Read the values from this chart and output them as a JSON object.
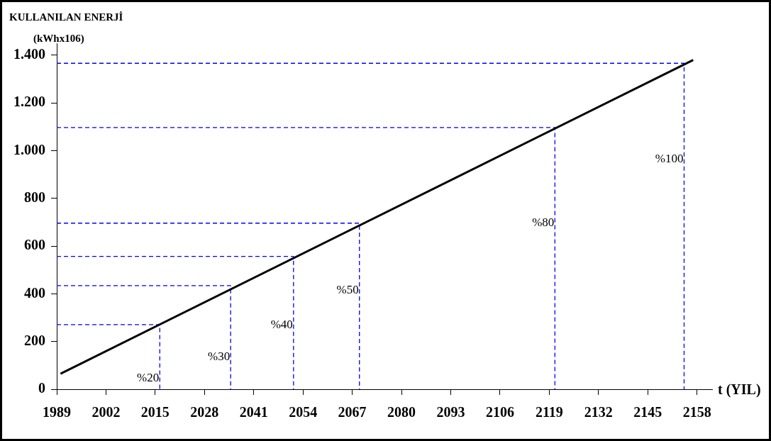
{
  "chart_data": {
    "type": "line",
    "title": "KULLANILAN ENERJİ",
    "ylabel": "(kWhx106)",
    "xlabel": "t (YIL)",
    "xlim": [
      1989,
      2162
    ],
    "xticks": [
      1989,
      2002,
      2015,
      2028,
      2041,
      2054,
      2067,
      2080,
      2093,
      2106,
      2119,
      2132,
      2145,
      2158
    ],
    "ylim": [
      0,
      1450
    ],
    "yticks": [
      0,
      200,
      400,
      600,
      800,
      {
        "value": 1000,
        "label": "1.000"
      },
      {
        "value": 1200,
        "label": "1.200"
      },
      {
        "value": 1400,
        "label": "1.400"
      }
    ],
    "marker": "none",
    "series": [
      {
        "color": "#000000",
        "line_style": "solid",
        "x": [
          1990,
          2157
        ],
        "values": [
          65,
          1380
        ]
      },
      {
        "color": "#0000ff",
        "line_style": "dashed",
        "x": [
          1989,
          2016.2,
          2016.2
        ],
        "values": [
          271,
          271,
          0
        ]
      },
      {
        "color": "#0000ff",
        "line_style": "dashed",
        "x": [
          1989,
          2034.9,
          2034.9
        ],
        "values": [
          434,
          434,
          0
        ]
      },
      {
        "color": "#0000ff",
        "line_style": "dashed",
        "x": [
          1989,
          2051.5,
          2051.5
        ],
        "values": [
          557,
          557,
          0
        ]
      },
      {
        "color": "#0000ff",
        "line_style": "dashed",
        "x": [
          1989,
          2068.9,
          2068.9
        ],
        "values": [
          696,
          696,
          0
        ]
      },
      {
        "color": "#0000ff",
        "line_style": "dashed",
        "x": [
          1989,
          2120.5,
          2120.5
        ],
        "values": [
          1097,
          1097,
          0
        ]
      },
      {
        "color": "#0000ff",
        "line_style": "dashed",
        "x": [
          1989,
          2154.6,
          2154.6
        ],
        "values": [
          1366,
          1366,
          0
        ]
      }
    ],
    "annotations": [
      {
        "text": "%20",
        "x": 2016.2,
        "y": 47
      },
      {
        "text": "%30",
        "x": 2034.9,
        "y": 136
      },
      {
        "text": "%40",
        "x": 2051.5,
        "y": 268
      },
      {
        "text": "%50",
        "x": 2068.9,
        "y": 413
      },
      {
        "text": "%80",
        "x": 2120.5,
        "y": 696
      },
      {
        "text": "%100",
        "x": 2154.6,
        "y": 965
      }
    ]
  }
}
